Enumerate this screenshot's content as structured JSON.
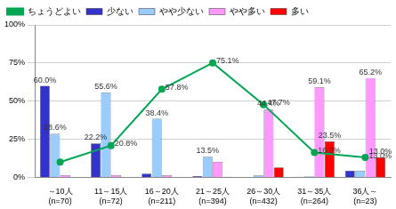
{
  "chart_data": {
    "type": "bar",
    "categories": [
      [
        "～10人",
        "(n=70)"
      ],
      [
        "11～15人",
        "(n=72)"
      ],
      [
        "16～20人",
        "(n=211)"
      ],
      [
        "21～25人",
        "(n=394)"
      ],
      [
        "26～30人",
        "(n=432)"
      ],
      [
        "31～35人",
        "(n=264)"
      ],
      [
        "36人～",
        "(n=23)"
      ]
    ],
    "series": [
      {
        "name": "少ない",
        "color": "#3333cc",
        "values": [
          60.0,
          22.2,
          2.4,
          0.8,
          0.2,
          0.4,
          4.3
        ],
        "value_labels": [
          "60.0%",
          "22.2%",
          null,
          null,
          null,
          null,
          null
        ]
      },
      {
        "name": "やや少ない",
        "color": "#99ccff",
        "values": [
          28.6,
          55.6,
          38.4,
          13.5,
          1.2,
          0.7,
          4.3
        ],
        "value_labels": [
          "28.6%",
          "55.6%",
          "38.4%",
          "13.5%",
          null,
          null,
          null
        ]
      },
      {
        "name": "やや多い",
        "color": "#ff99ff",
        "values": [
          1.4,
          1.4,
          1.4,
          10.2,
          44.4,
          59.1,
          65.2
        ],
        "value_labels": [
          null,
          null,
          null,
          null,
          "44.4%",
          "59.1%",
          "65.2%"
        ]
      },
      {
        "name": "多い",
        "color": "#ff0000",
        "values": [
          0,
          0,
          0,
          0.4,
          6.5,
          23.5,
          13.0
        ],
        "value_labels": [
          null,
          null,
          null,
          null,
          null,
          "23.5%",
          "13.0%"
        ]
      },
      {
        "name": "ちょうどよい",
        "color": "#00a651",
        "type": "line",
        "marker": "circle",
        "line_style": "solid",
        "values": [
          10.0,
          20.8,
          57.8,
          75.1,
          47.7,
          16.3,
          13.0
        ],
        "value_labels": [
          null,
          "20.8%",
          "57.8%",
          "75.1%",
          "47.7%",
          "16.3%",
          "13.0%"
        ]
      }
    ],
    "ylim": [
      0,
      100
    ],
    "yticks": [
      {
        "value": 0,
        "label": "0%"
      },
      {
        "value": 25,
        "label": "25%"
      },
      {
        "value": 50,
        "label": "50%"
      },
      {
        "value": 75,
        "label": "75%"
      },
      {
        "value": 100,
        "label": "100%"
      }
    ],
    "grid": true,
    "legend": "top",
    "data_labels": true
  }
}
